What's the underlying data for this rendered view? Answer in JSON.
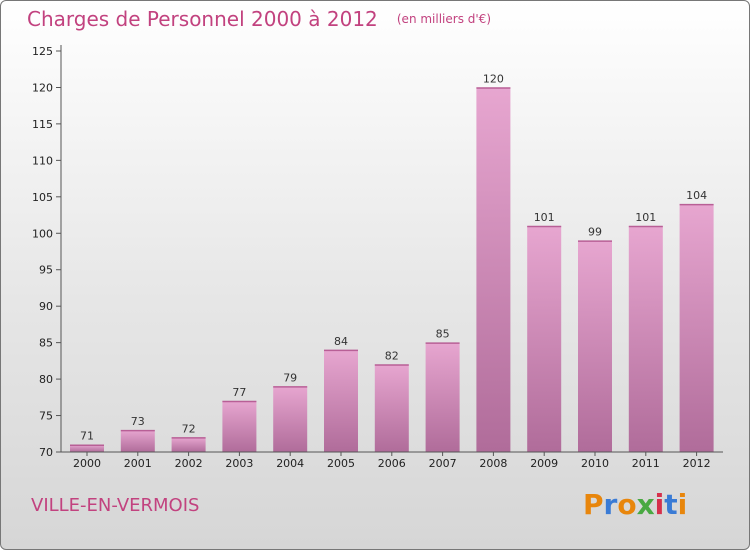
{
  "title": "Charges de Personnel 2000 à 2012",
  "subtitle": "(en milliers d'€)",
  "commune": "VILLE-EN-VERMOIS",
  "brand": {
    "letters": [
      "P",
      "r",
      "o",
      "x",
      "i",
      "t",
      "i"
    ],
    "colors": [
      "#e8860c",
      "#3a7bd5",
      "#e8860c",
      "#49a942",
      "#d6304c",
      "#3a7bd5",
      "#e8860c"
    ]
  },
  "colors": {
    "bar_light": "#e7a6d0",
    "bar_dark": "#b06c9a",
    "title": "#c2427f"
  },
  "chart_data": {
    "type": "bar",
    "categories": [
      "2000",
      "2001",
      "2002",
      "2003",
      "2004",
      "2005",
      "2006",
      "2007",
      "2008",
      "2009",
      "2010",
      "2011",
      "2012"
    ],
    "values": [
      71,
      73,
      72,
      77,
      79,
      84,
      82,
      85,
      120,
      101,
      99,
      101,
      104
    ],
    "ylim": [
      70,
      125
    ],
    "yticks": [
      70,
      75,
      80,
      85,
      90,
      95,
      100,
      105,
      110,
      115,
      120,
      125
    ],
    "title": "Charges de Personnel 2000 à 2012",
    "subtitle": "(en milliers d'€)",
    "xlabel": "",
    "ylabel": "",
    "grid": false
  }
}
